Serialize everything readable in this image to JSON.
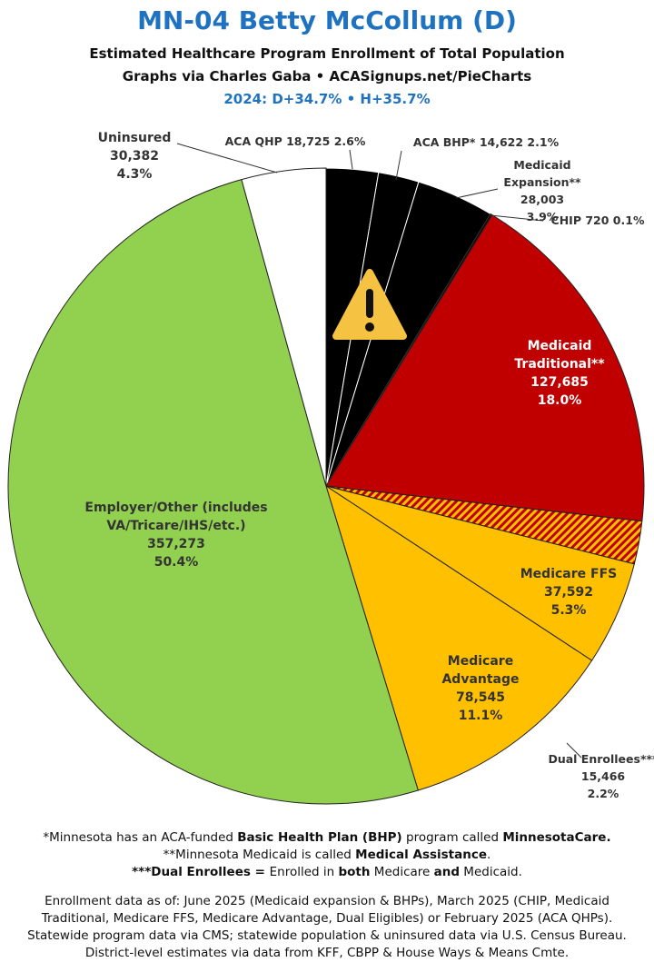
{
  "chart_data": {
    "type": "pie",
    "title": "MN-04 Betty McCollum (D)",
    "subtitle_lines": [
      "Estimated Healthcare Program Enrollment of Total Population",
      "Graphs via Charles Gaba  •  ACASignups.net/PieCharts"
    ],
    "note": "2024: D+34.7% • H+35.7%",
    "categories": [
      "ACA QHP",
      "ACA BHP*",
      "Medicaid Expansion**",
      "CHIP",
      "Medicaid Traditional**",
      "Dual Enrollees***",
      "Medicare FFS",
      "Medicare Advantage",
      "Employer/Other (includes VA/Tricare/IHS/etc.)",
      "Uninsured"
    ],
    "values": [
      18725,
      14622,
      28003,
      720,
      127685,
      15466,
      37592,
      78545,
      357273,
      30382
    ],
    "value_labels": [
      "18,725",
      "14,622",
      "28,003",
      "720",
      "127,685",
      "15,466",
      "37,592",
      "78,545",
      "357,273",
      "30,382"
    ],
    "percent_labels": [
      "2.6%",
      "2.1%",
      "3.9%",
      "0.1%",
      "18.0%",
      "2.2%",
      "5.3%",
      "11.1%",
      "50.4%",
      "4.3%"
    ],
    "colors": [
      "#000000",
      "#000000",
      "#000000",
      "#1a0000",
      "#c00000",
      "hatch",
      "#ffc000",
      "#ffc000",
      "#92d050",
      "#ffffff"
    ]
  },
  "footnotes": [
    [
      {
        "t": "*Minnesota has an ACA-funded ",
        "b": false
      },
      {
        "t": "Basic Health Plan (BHP)",
        "b": true
      },
      {
        "t": " program called ",
        "b": false
      },
      {
        "t": "MinnesotaCare.",
        "b": true
      }
    ],
    [
      {
        "t": "**Minnesota Medicaid is called ",
        "b": false
      },
      {
        "t": "Medical Assistance",
        "b": true
      },
      {
        "t": ".",
        "b": false
      }
    ],
    [
      {
        "t": "***Dual Enrollees = ",
        "b": true
      },
      {
        "t": "Enrolled in ",
        "b": false
      },
      {
        "t": "both",
        "b": true
      },
      {
        "t": " Medicare ",
        "b": false
      },
      {
        "t": "and",
        "b": true
      },
      {
        "t": " Medicaid.",
        "b": false
      }
    ]
  ],
  "sources": [
    "Enrollment data as of: June 2025 (Medicaid expansion & BHPs), March 2025 (CHIP, Medicaid Traditional, Medicare FFS, Medicare Advantage, Dual Eligibles) or February 2025 (ACA QHPs).",
    "Statewide program data via CMS; statewide population & uninsured data via U.S. Census Bureau.",
    "District-level estimates via data from KFF, CBPP & House Ways & Means Cmte."
  ]
}
